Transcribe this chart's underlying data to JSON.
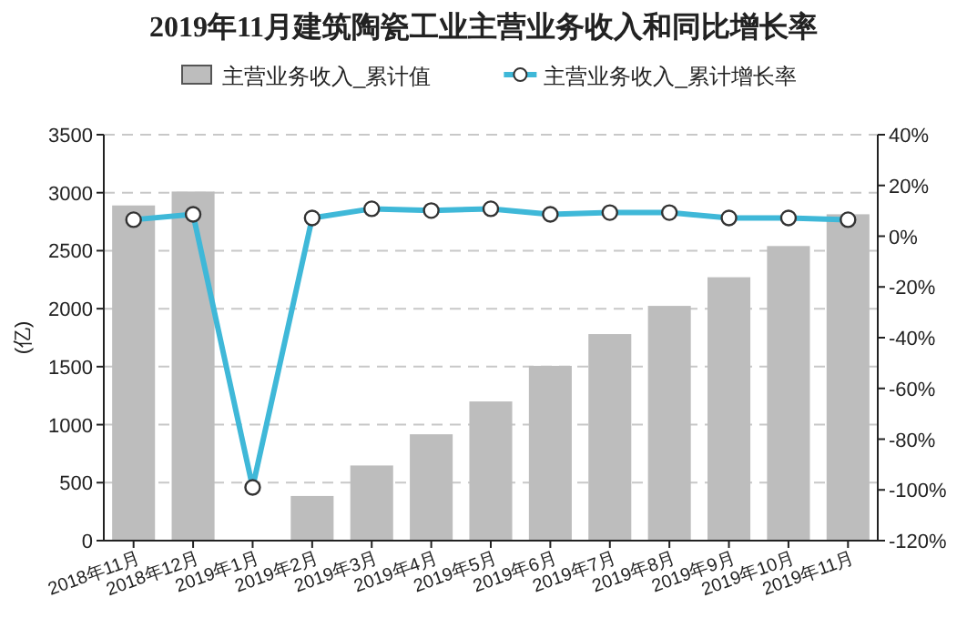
{
  "chart_data": {
    "type": "bar",
    "title": "2019年11月建筑陶瓷工业主营业务收入和同比增长率",
    "ylabel": "(亿)",
    "categories": [
      "2018年11月",
      "2018年12月",
      "2019年1月",
      "2019年2月",
      "2019年3月",
      "2019年4月",
      "2019年5月",
      "2019年6月",
      "2019年7月",
      "2019年8月",
      "2019年9月",
      "2019年10月",
      "2019年11月"
    ],
    "series": [
      {
        "name": "主营业务收入_累计值",
        "color": "#bdbdbd",
        "values": [
          2890,
          3010,
          null,
          385,
          648,
          917,
          1200,
          1507,
          1781,
          2024,
          2271,
          2540,
          2814
        ]
      },
      {
        "name": "主营业务收入_累计增长率",
        "type": "line",
        "axis": "y2",
        "color": "#3fb8d8",
        "values": [
          6.5,
          8.6,
          -99,
          7.2,
          10.8,
          10.1,
          10.8,
          8.6,
          9.3,
          9.3,
          7.2,
          7.2,
          6.5
        ]
      }
    ],
    "ylim": [
      0,
      3500
    ],
    "yticks": [
      0,
      500,
      1000,
      1500,
      2000,
      2500,
      3000,
      3500
    ],
    "y2lim": [
      -120,
      40
    ],
    "y2ticks": [
      {
        "value": -120,
        "label": "-120%"
      },
      {
        "value": -100,
        "label": "-100%"
      },
      {
        "value": -80,
        "label": "-80%"
      },
      {
        "value": -60,
        "label": "-60%"
      },
      {
        "value": -40,
        "label": "-40%"
      },
      {
        "value": -20,
        "label": "-20%"
      },
      {
        "value": 0,
        "label": "0%"
      },
      {
        "value": 20,
        "label": "20%"
      },
      {
        "value": 40,
        "label": "40%"
      }
    ],
    "grid": "y",
    "legend": "top",
    "marker": "circle"
  }
}
